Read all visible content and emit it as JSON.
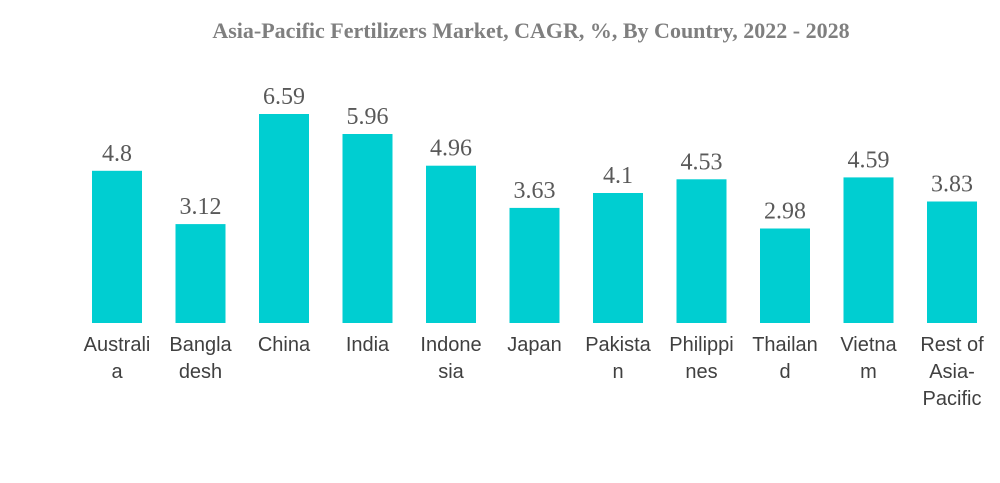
{
  "chart_data": {
    "type": "bar",
    "title": "Asia-Pacific Fertilizers Market, CAGR, %, By Country, 2022 - 2028",
    "categories": [
      "Australia",
      "Bangladesh",
      "China",
      "India",
      "Indonesia",
      "Japan",
      "Pakistan",
      "Philippines",
      "Thailand",
      "Vietnam",
      "Rest of Asia-Pacific"
    ],
    "category_label_lines": [
      [
        "Australi",
        "a"
      ],
      [
        "Bangla",
        "desh"
      ],
      [
        "China"
      ],
      [
        "India"
      ],
      [
        "Indone",
        "sia"
      ],
      [
        "Japan"
      ],
      [
        "Pakista",
        "n"
      ],
      [
        "Philippi",
        "nes"
      ],
      [
        "Thailan",
        "d"
      ],
      [
        "Vietna",
        "m"
      ],
      [
        "Rest of",
        "Asia-",
        "Pacific"
      ]
    ],
    "values": [
      4.8,
      3.12,
      6.59,
      5.96,
      4.96,
      3.63,
      4.1,
      4.53,
      2.98,
      4.59,
      3.83
    ],
    "value_labels": [
      "4.8",
      "3.12",
      "6.59",
      "5.96",
      "4.96",
      "3.63",
      "4.1",
      "4.53",
      "2.98",
      "4.59",
      "3.83"
    ],
    "xlabel": "",
    "ylabel": "",
    "ylim": [
      0,
      6.59
    ],
    "grid": false,
    "legend": "none",
    "bar_color": "#00CED1"
  }
}
